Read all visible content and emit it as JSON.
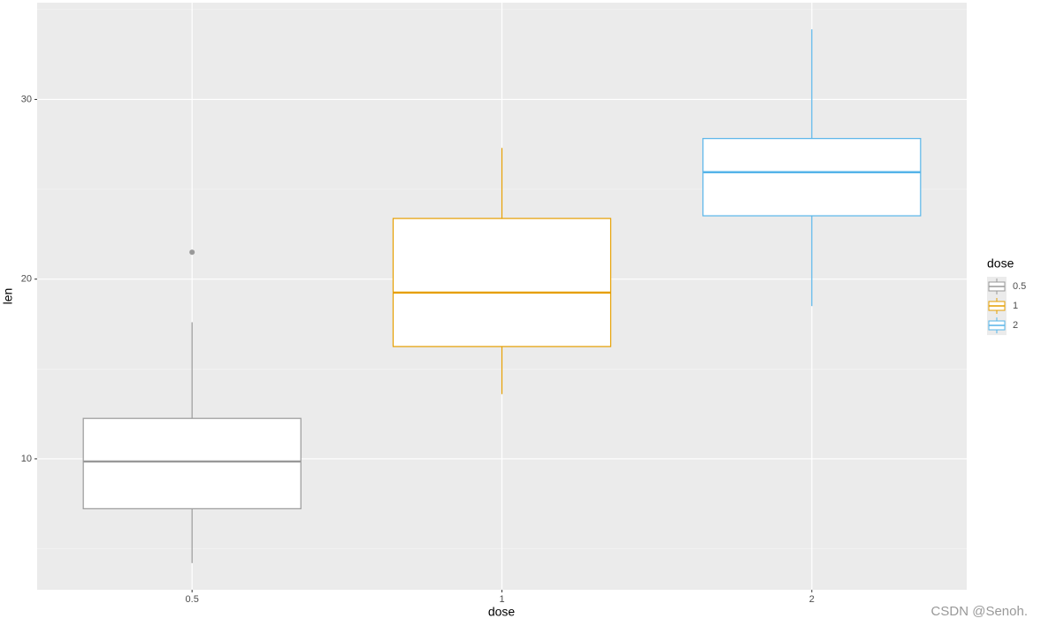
{
  "chart_data": {
    "type": "box",
    "x_label": "dose",
    "y_label": "len",
    "categories": [
      "0.5",
      "1",
      "2"
    ],
    "colors": [
      "#999999",
      "#E69F00",
      "#56B4E9"
    ],
    "boxes": [
      {
        "min": 4.2,
        "q1": 7.225,
        "median": 9.85,
        "q3": 12.25,
        "max": 17.6,
        "outliers": [
          21.5
        ]
      },
      {
        "min": 13.6,
        "q1": 16.25,
        "median": 19.25,
        "q3": 23.375,
        "max": 27.3,
        "outliers": []
      },
      {
        "min": 18.5,
        "q1": 23.525,
        "median": 25.95,
        "q3": 27.825,
        "max": 33.9,
        "outliers": []
      }
    ],
    "ylim": [
      2.715,
      35.385
    ],
    "yticks": [
      10,
      20,
      30
    ],
    "y_minor_gridlines": [
      5,
      15,
      25,
      35
    ],
    "grid": true,
    "legend_title": "dose",
    "legend_position": "right",
    "watermark": "CSDN @Senoh."
  }
}
